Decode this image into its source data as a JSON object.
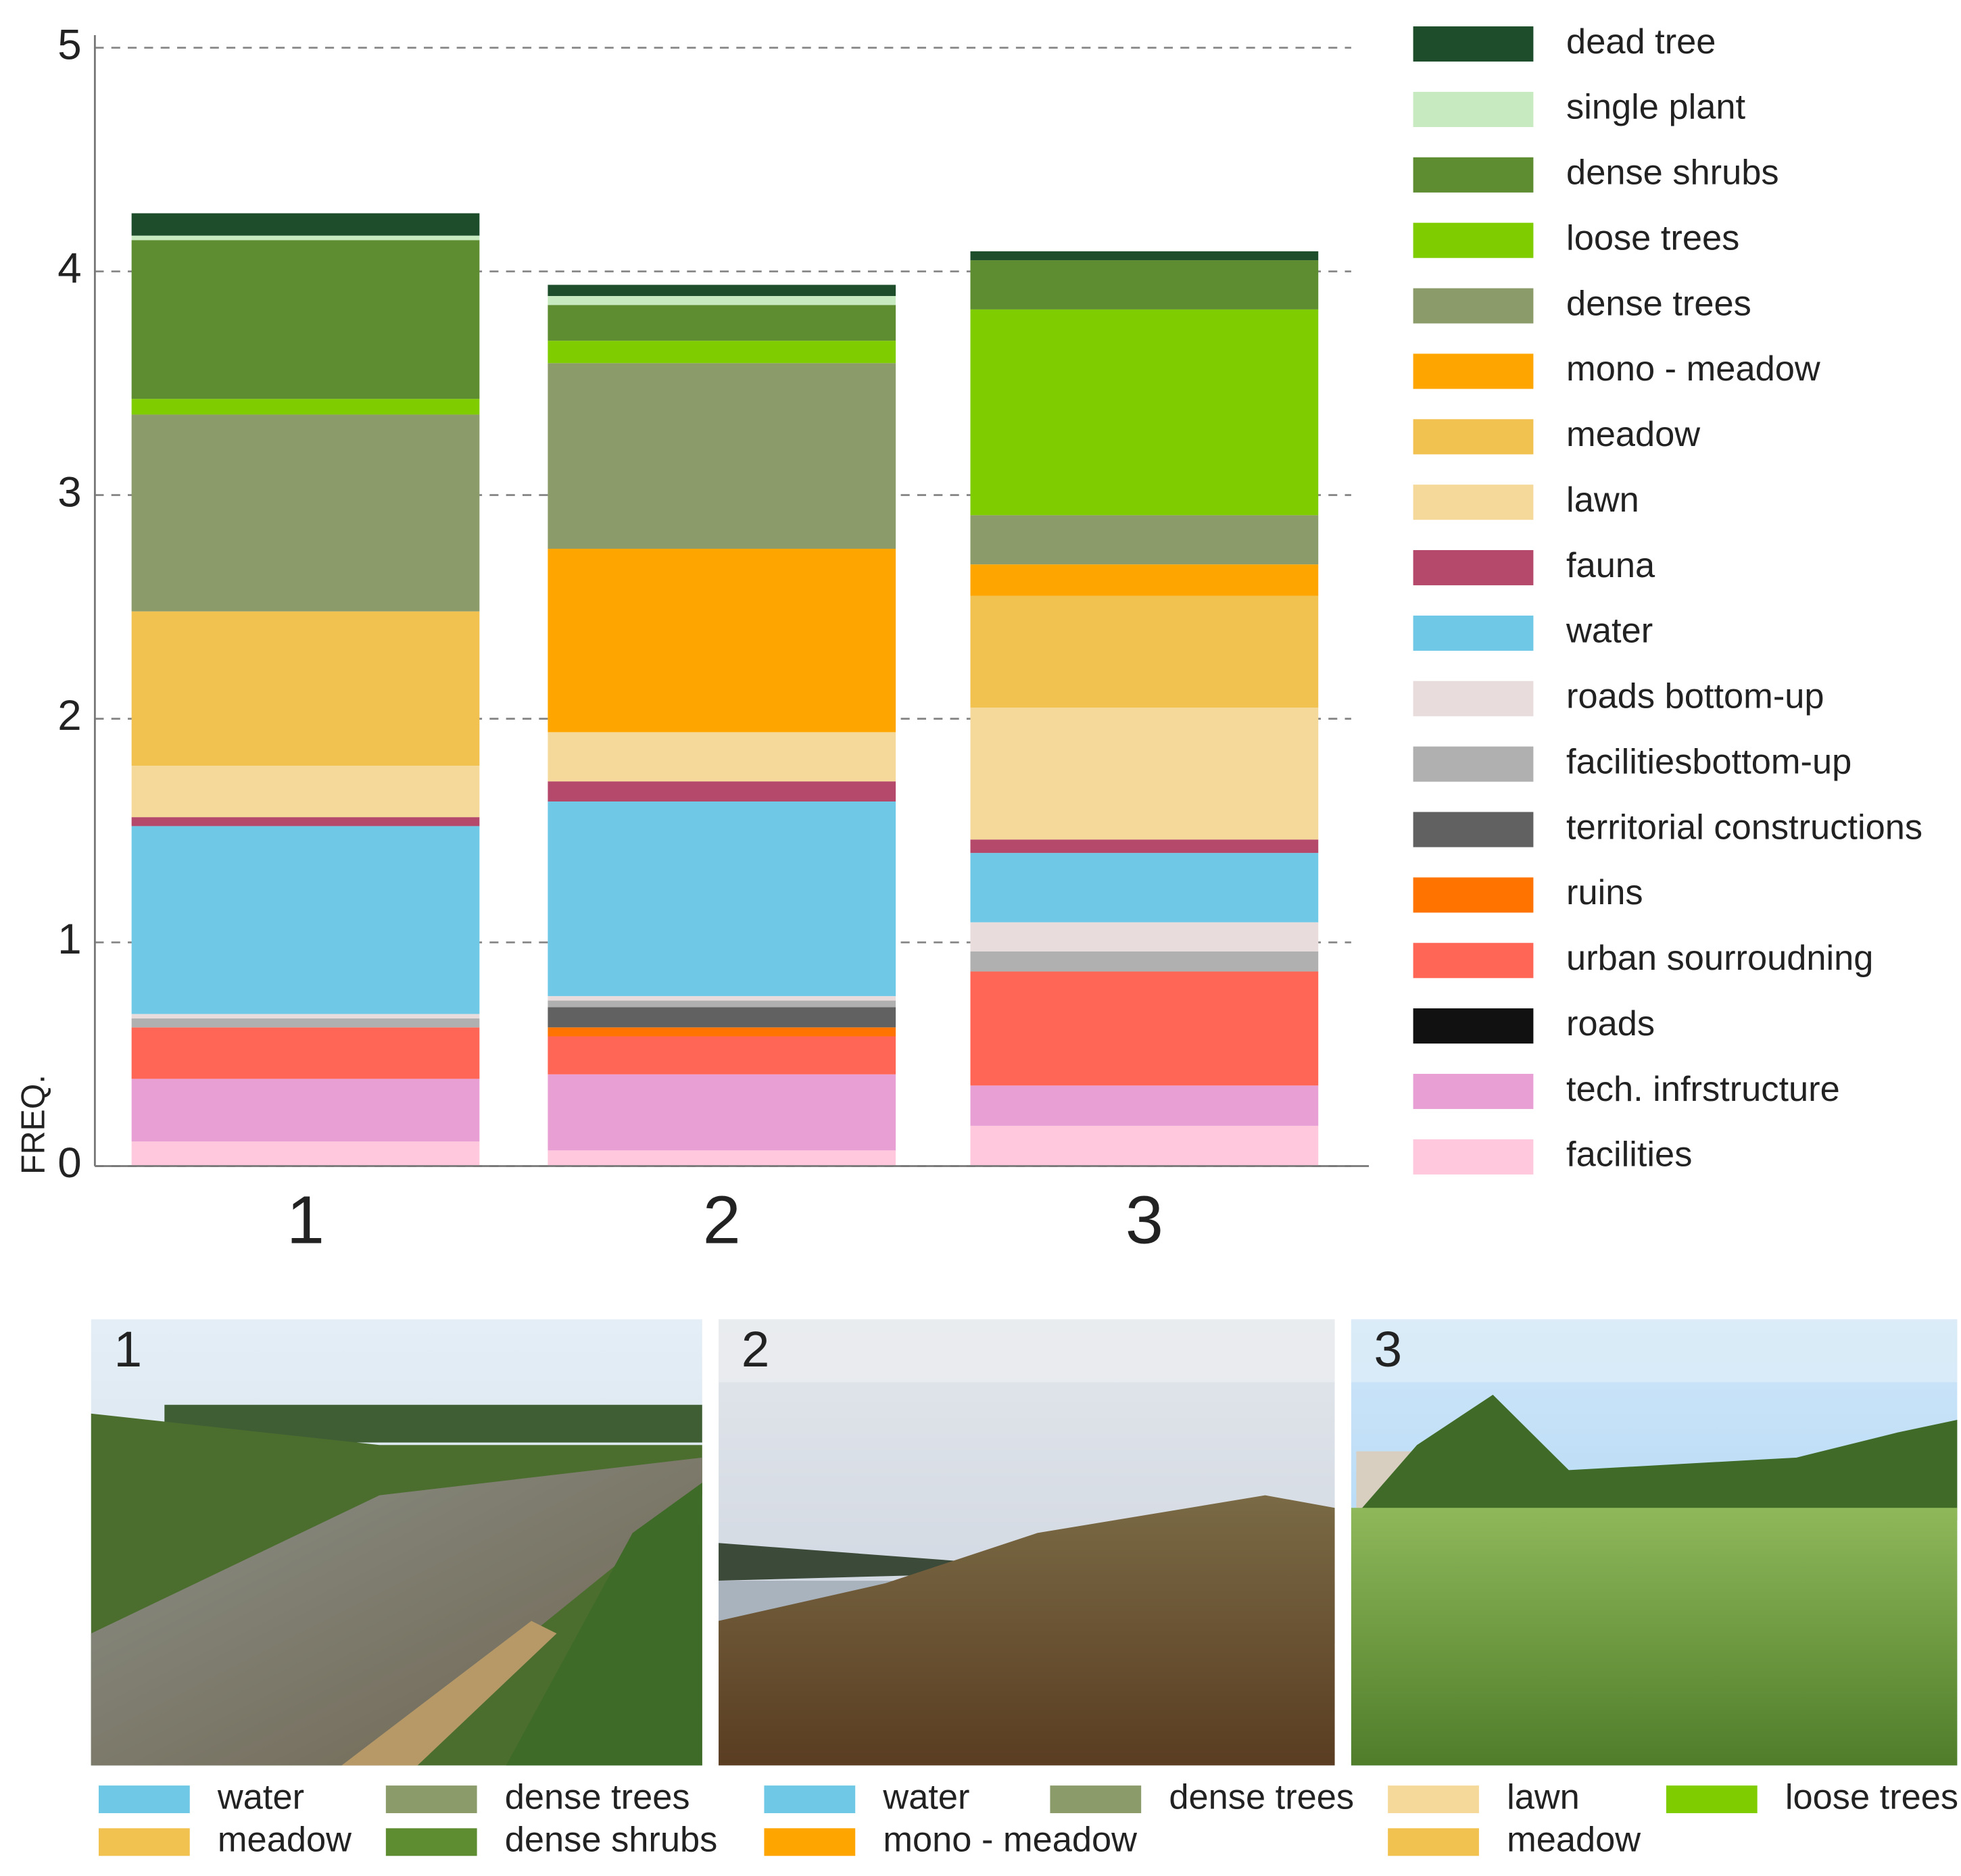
{
  "chart_data": {
    "type": "bar",
    "stacked": true,
    "y_label": "FREQ.",
    "categories": [
      "1",
      "2",
      "3"
    ],
    "ylim": [
      0,
      5
    ],
    "yticks": [
      0,
      1,
      2,
      3,
      4,
      5
    ],
    "grid": true,
    "legend_position": "right",
    "series": [
      {
        "name": "facilities",
        "color": "#ffc8dc",
        "values": [
          0.11,
          0.07,
          0.18
        ]
      },
      {
        "name": "tech. infrstructure",
        "color": "#e8a0d4",
        "values": [
          0.28,
          0.34,
          0.18
        ]
      },
      {
        "name": "roads",
        "color": "#111111",
        "values": [
          0,
          0,
          0
        ]
      },
      {
        "name": "urban sourroudning",
        "color": "#ff6655",
        "values": [
          0.23,
          0.17,
          0.51
        ]
      },
      {
        "name": "ruins",
        "color": "#ff7300",
        "values": [
          0,
          0.04,
          0
        ]
      },
      {
        "name": "territorial constructions",
        "color": "#616161",
        "values": [
          0,
          0.09,
          0
        ]
      },
      {
        "name": "facilitiesbottom-up",
        "color": "#b0b0b0",
        "values": [
          0.04,
          0.03,
          0.09
        ]
      },
      {
        "name": "roads bottom-up",
        "color": "#e8dcdc",
        "values": [
          0.02,
          0.02,
          0.13
        ]
      },
      {
        "name": "water",
        "color": "#6ec8e6",
        "values": [
          0.84,
          0.87,
          0.31
        ]
      },
      {
        "name": "fauna",
        "color": "#b5496b",
        "values": [
          0.04,
          0.09,
          0.06
        ]
      },
      {
        "name": "lawn",
        "color": "#f5d99a",
        "values": [
          0.23,
          0.22,
          0.59
        ]
      },
      {
        "name": "meadow",
        "color": "#f2c250",
        "values": [
          0.69,
          0,
          0.5
        ]
      },
      {
        "name": "mono - meadow",
        "color": "#ffa500",
        "values": [
          0,
          0.82,
          0.14
        ]
      },
      {
        "name": "dense trees",
        "color": "#8c9b6a",
        "values": [
          0.88,
          0.83,
          0.22
        ]
      },
      {
        "name": "loose trees",
        "color": "#7fcc00",
        "values": [
          0.07,
          0.1,
          0.92
        ]
      },
      {
        "name": "dense shrubs",
        "color": "#5e8c31",
        "values": [
          0.71,
          0.16,
          0.22
        ]
      },
      {
        "name": "single plant",
        "color": "#c8eac0",
        "values": [
          0.02,
          0.04,
          0
        ]
      },
      {
        "name": "dead tree",
        "color": "#1d4d2b",
        "values": [
          0.1,
          0.05,
          0.04
        ]
      }
    ]
  },
  "photos": [
    {
      "label": "1",
      "legend": [
        {
          "name": "water",
          "color": "#6ec8e6"
        },
        {
          "name": "meadow",
          "color": "#f2c250"
        },
        {
          "name": "dense trees",
          "color": "#8c9b6a"
        },
        {
          "name": "dense shrubs",
          "color": "#5e8c31"
        }
      ]
    },
    {
      "label": "2",
      "legend": [
        {
          "name": "water",
          "color": "#6ec8e6"
        },
        {
          "name": "mono - meadow",
          "color": "#ffa500"
        },
        {
          "name": "dense trees",
          "color": "#8c9b6a"
        }
      ]
    },
    {
      "label": "3",
      "legend": [
        {
          "name": "lawn",
          "color": "#f5d99a"
        },
        {
          "name": "meadow",
          "color": "#f2c250"
        },
        {
          "name": "loose trees",
          "color": "#7fcc00"
        }
      ]
    }
  ]
}
